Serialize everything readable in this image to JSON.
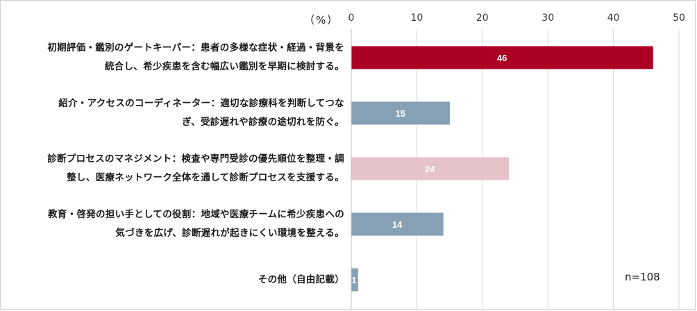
{
  "chart_data": {
    "type": "bar",
    "orientation": "horizontal",
    "unit_label": "（%）",
    "note": "n=108",
    "xlim": [
      0,
      50
    ],
    "x_ticks": [
      0,
      10,
      20,
      30,
      40,
      50
    ],
    "grid": true,
    "categories": [
      [
        "初期評価・鑑別のゲートキーパー：患者の多様な症状・経過・背景を",
        "統合し、希少疾患を含む幅広い鑑別を早期に検討する。"
      ],
      [
        "紹介・アクセスのコーディネーター：適切な診療科を判断してつな",
        "ぎ、受診遅れや診療の途切れを防ぐ。"
      ],
      [
        "診断プロセスのマネジメント：検査や専門受診の優先順位を整理・調",
        "整し、医療ネットワーク全体を通して診断プロセスを支援する。"
      ],
      [
        "教育・啓発の担い手としての役割：地域や医療チームに希少疾患への",
        "気づきを広げ、診断遅れが起きにくい環境を整える。"
      ],
      [
        "その他（自由記載）"
      ]
    ],
    "values": [
      46,
      15,
      24,
      14,
      1
    ],
    "bar_colors": [
      "#ab0023",
      "#87a0b3",
      "#e6c3c9",
      "#87a0b3",
      "#87a0b3"
    ],
    "grid_color": "#d9d9d9",
    "label_color": "#ffffff"
  }
}
